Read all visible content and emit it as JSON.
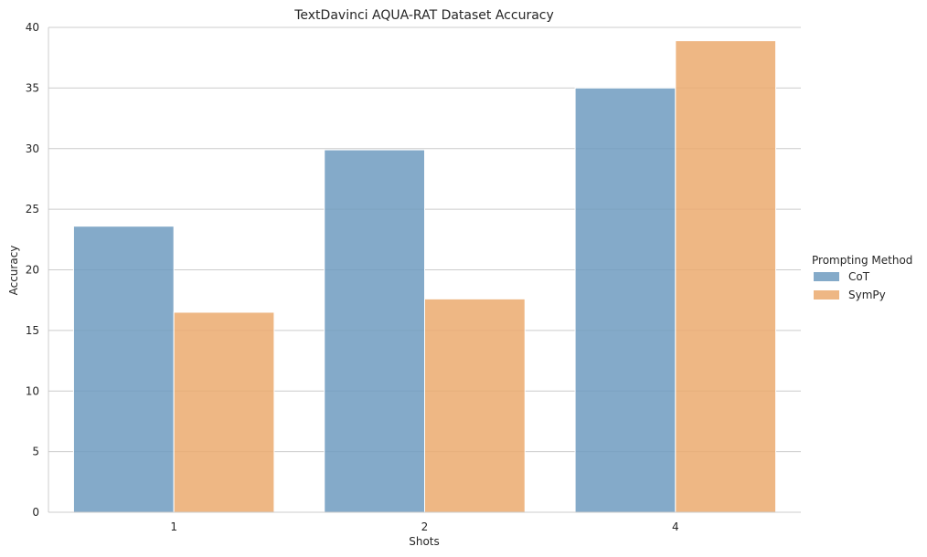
{
  "chart_data": {
    "type": "bar",
    "title": "TextDavinci AQUA-RAT Dataset Accuracy",
    "xlabel": "Shots",
    "ylabel": "Accuracy",
    "categories": [
      "1",
      "2",
      "4"
    ],
    "series": [
      {
        "name": "CoT",
        "values": [
          23.6,
          29.9,
          35.0
        ],
        "color": "#6f9bbf"
      },
      {
        "name": "SymPy",
        "values": [
          16.5,
          17.6,
          38.9
        ],
        "color": "#ebaa6e"
      }
    ],
    "ylim": [
      0,
      40
    ],
    "yticks": [
      0,
      5,
      10,
      15,
      20,
      25,
      30,
      35,
      40
    ],
    "grid": "horizontal",
    "legend": {
      "title": "Prompting Method",
      "placement": "right"
    }
  }
}
